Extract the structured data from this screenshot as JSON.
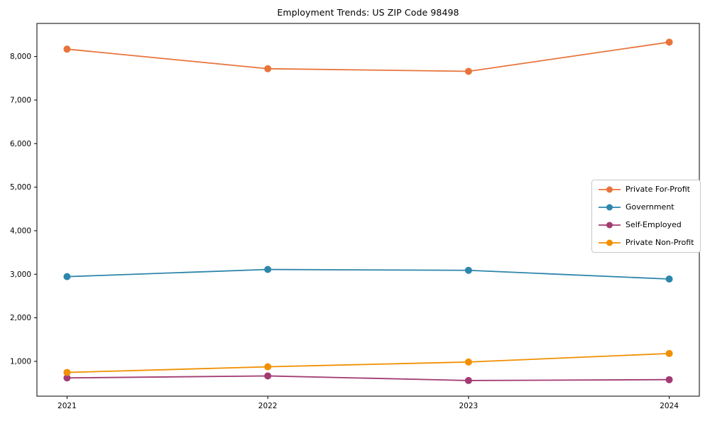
{
  "chart_data": {
    "type": "line",
    "title": "Employment Trends: US ZIP Code 98498",
    "categories": [
      2021,
      2022,
      2023,
      2024
    ],
    "series": [
      {
        "name": "Private For-Profit",
        "color": "#E8743B",
        "values": [
          8170,
          7720,
          7660,
          8330
        ]
      },
      {
        "name": "Government",
        "color": "#2E86AB",
        "values": [
          2945,
          3110,
          3090,
          2890
        ]
      },
      {
        "name": "Self-Employed",
        "color": "#A23B72",
        "values": [
          620,
          665,
          560,
          580
        ]
      },
      {
        "name": "Private Non-Profit",
        "color": "#F18F01",
        "values": [
          745,
          875,
          985,
          1180
        ]
      }
    ],
    "xlabel": "",
    "ylabel": "",
    "xlim": [
      2020.85,
      2024.15
    ],
    "ylim": [
      200,
      8760
    ],
    "yticks": [
      1000,
      2000,
      3000,
      4000,
      5000,
      6000,
      7000,
      8000
    ],
    "ytick_format": "comma",
    "grid": false,
    "legend_position": "center-right",
    "axis_color": "#000000",
    "text_color": "#000000",
    "legend_border_color": "#c8c8c8",
    "background_color": "#ffffff",
    "marker": "circle",
    "marker_radius": 5,
    "line_width": 1.8
  }
}
